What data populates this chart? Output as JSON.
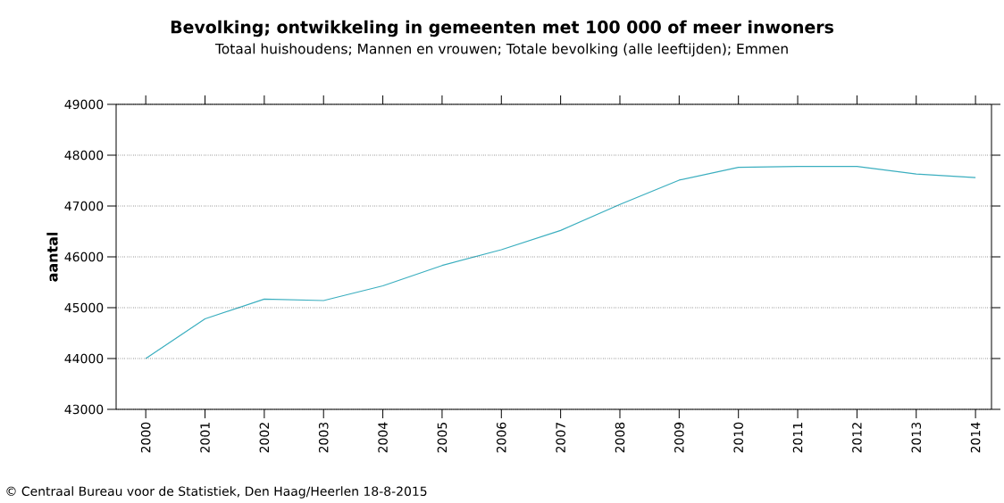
{
  "chart_data": {
    "type": "line",
    "title": "Bevolking; ontwikkeling in gemeenten met 100 000 of meer inwoners",
    "subtitle": "Totaal huishoudens; Mannen en vrouwen; Totale bevolking (alle leeftijden); Emmen",
    "ylabel": "aantal",
    "categories": [
      "2000",
      "2001",
      "2002",
      "2003",
      "2004",
      "2005",
      "2006",
      "2007",
      "2008",
      "2009",
      "2010",
      "2011",
      "2012",
      "2013",
      "2014"
    ],
    "series": [
      {
        "color": "#3aaebf",
        "values": [
          44000,
          44780,
          45170,
          45140,
          45430,
          45830,
          46140,
          46520,
          47030,
          47510,
          47760,
          47780,
          47780,
          47630,
          47560
        ]
      }
    ],
    "ylim": [
      43000,
      49000
    ],
    "yticks": [
      43000,
      44000,
      45000,
      46000,
      47000,
      48000,
      49000
    ],
    "grid": "y",
    "marker": "none",
    "line_style": "solid",
    "annotations": [
      "© Centraal Bureau voor de Statistiek, Den Haag/Heerlen 18-8-2015"
    ]
  }
}
